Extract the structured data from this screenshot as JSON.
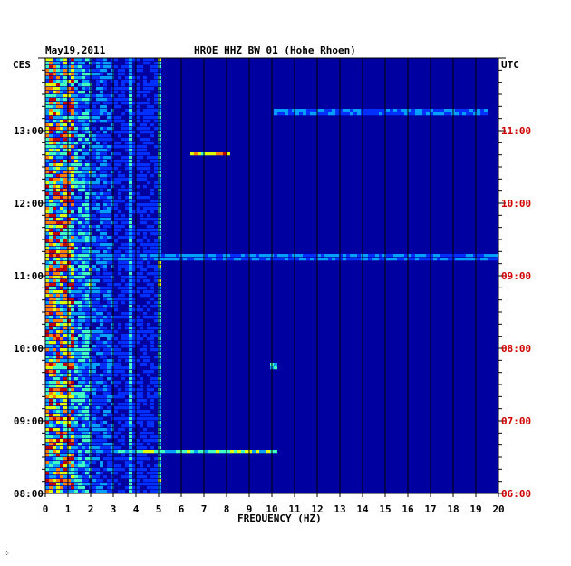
{
  "header": {
    "date": "May19,2011",
    "station": "HROE HHZ BW 01 (Hohe Rhoen)"
  },
  "colors": {
    "background": "#0000a0",
    "left_axis_text": "#000000",
    "right_axis_text": "#d00000",
    "gridline": "#000000",
    "palette": [
      "#0000a0",
      "#0030ff",
      "#00a0ff",
      "#40ffc0",
      "#e0ff00",
      "#ff8000",
      "#c00000"
    ]
  },
  "footer_mark": "⁘",
  "chart_data": {
    "type": "heatmap",
    "title": "HROE HHZ BW 01 (Hohe Rhoen)",
    "date": "May19,2011",
    "xlabel": "FREQUENCY (HZ)",
    "xlim": [
      0,
      20
    ],
    "x_ticks": [
      "0",
      "1",
      "2",
      "3",
      "4",
      "5",
      "6",
      "7",
      "8",
      "9",
      "10",
      "11",
      "12",
      "13",
      "14",
      "15",
      "16",
      "17",
      "18",
      "19",
      "20"
    ],
    "y_axis_left": {
      "label": "CES",
      "ticks": [
        "08:00",
        "09:00",
        "10:00",
        "11:00",
        "12:00",
        "13:00"
      ],
      "range": [
        "08:00",
        "14:00"
      ]
    },
    "y_axis_right": {
      "label": "UTC",
      "ticks": [
        "06:00",
        "07:00",
        "08:00",
        "09:00",
        "10:00",
        "11:00"
      ],
      "range": [
        "06:00",
        "12:00"
      ]
    },
    "vertical_gridlines_hz": [
      1,
      2,
      3,
      4,
      5,
      6,
      7,
      8,
      9,
      10,
      11,
      12,
      13,
      14,
      15,
      16,
      17,
      18,
      19
    ],
    "persistent_lines_hz": [
      3.7,
      4.9
    ],
    "bands": [
      {
        "hz": [
          0.0,
          1.2
        ],
        "level": 0.55
      },
      {
        "hz": [
          1.2,
          2.0
        ],
        "level": 0.32
      },
      {
        "hz": [
          2.0,
          3.0
        ],
        "level": 0.22
      },
      {
        "hz": [
          3.0,
          5.0
        ],
        "level": 0.15
      },
      {
        "hz": [
          5.0,
          20.0
        ],
        "level": 0.04
      }
    ],
    "events": [
      {
        "time_utc": "10:40",
        "hz": [
          6.4,
          8.0
        ],
        "level": 0.72
      },
      {
        "time_utc": "09:15",
        "hz": [
          0.0,
          20.0
        ],
        "level": 0.32
      },
      {
        "time_utc": "06:35",
        "hz": [
          3.0,
          10.2
        ],
        "level": 0.55
      },
      {
        "time_utc": "11:15",
        "hz": [
          10.0,
          19.5
        ],
        "level": 0.3
      },
      {
        "time_utc": "07:45",
        "hz": [
          9.8,
          10.1
        ],
        "level": 0.45
      }
    ]
  }
}
